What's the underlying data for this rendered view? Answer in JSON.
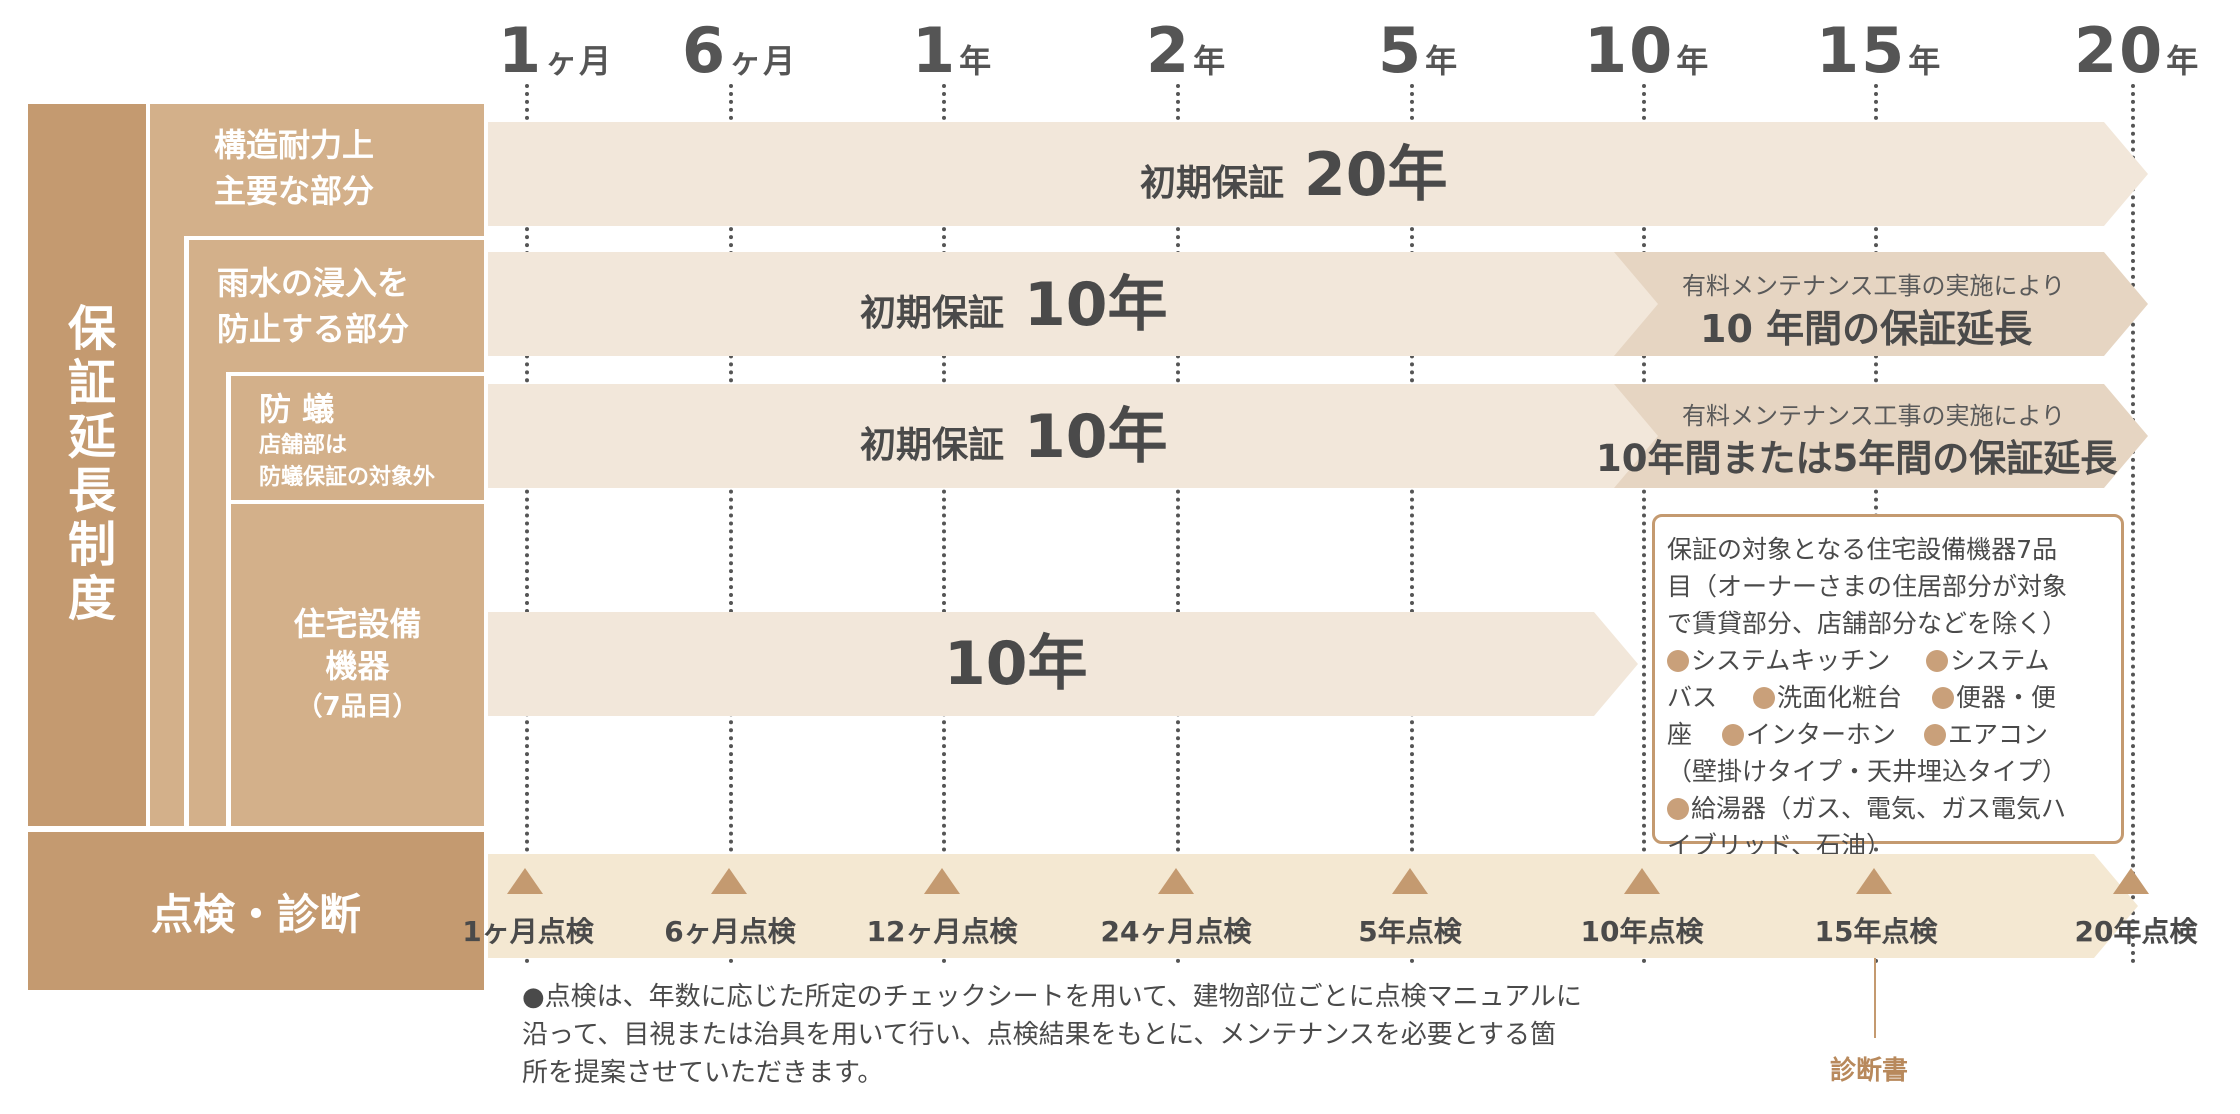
{
  "timeline": [
    {
      "num": "1",
      "unit": "ヶ月"
    },
    {
      "num": "6",
      "unit": "ヶ月"
    },
    {
      "num": "1",
      "unit": "年"
    },
    {
      "num": "2",
      "unit": "年"
    },
    {
      "num": "5",
      "unit": "年"
    },
    {
      "num": "10",
      "unit": "年"
    },
    {
      "num": "15",
      "unit": "年"
    },
    {
      "num": "20",
      "unit": "年"
    }
  ],
  "categories": {
    "main": "保証延長制度",
    "structural": {
      "line1": "構造耐力上",
      "line2": "主要な部分"
    },
    "rain": {
      "line1": "雨水の浸入を",
      "line2": "防止する部分"
    },
    "termite": {
      "title": "防 蟻",
      "note1": "店舗部は",
      "note2": "防蟻保証の対象外"
    },
    "equipment": {
      "line1": "住宅設備",
      "line2": "機器",
      "line3": "（7品目）"
    },
    "inspection": "点検・診断"
  },
  "bars": {
    "structural": {
      "label": "初期保証",
      "value": "20年"
    },
    "rain": {
      "label": "初期保証",
      "value": "10年",
      "ext_small": "有料メンテナンス工事の実施により",
      "ext_large": "10 年間の保証延長"
    },
    "termite": {
      "label": "初期保証",
      "value": "10年",
      "ext_small": "有料メンテナンス工事の実施により",
      "ext_large": "10年間または5年間の保証延長"
    },
    "equipment": {
      "value": "10年"
    }
  },
  "equipment_box": {
    "line1": "保証の対象となる住宅設備機器7品",
    "line2": "目（オーナーさまの住居部分が対象",
    "line3": "で賃貸部分、店舗部分などを除く）",
    "item1": "システムキッチン",
    "item2a": "システム",
    "item2b": "バス",
    "item3": "洗面化粧台",
    "item4a": "便器・便",
    "item4b": "座",
    "item5": "インターホン",
    "item6": "エアコン",
    "item6_note": "（壁掛けタイプ・天井埋込タイプ）",
    "item7": "給湯器（ガス、電気、ガス電気ハ",
    "item7b": "イブリッド、石油）"
  },
  "inspections": [
    "1ヶ月点検",
    "6ヶ月点検",
    "12ヶ月点検",
    "24ヶ月点検",
    "5年点検",
    "10年点検",
    "15年点検",
    "20年点検"
  ],
  "diagnosis": "診断書",
  "note": "●点検は、年数に応じた所定のチェックシートを用いて、建物部位ごとに点検マニュアルに沿って、目視または治具を用いて行い、点検結果をもとに、メンテナンスを必要とする箇所を提案させていただきます。",
  "colors": {
    "dark": "#c49a70",
    "mid": "#d3b08a",
    "light": "#f2e7da",
    "ext": "#e6d5c2",
    "insp": "#f4e8d2"
  }
}
